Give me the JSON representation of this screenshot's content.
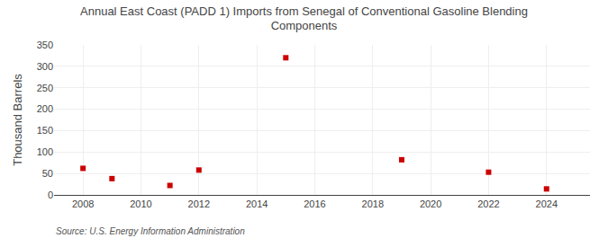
{
  "chart_data": {
    "type": "scatter",
    "title": "Annual East Coast (PADD 1) Imports from Senegal of Conventional Gasoline Blending\nComponents",
    "ylabel": "Thousand Barrels",
    "source": "Source: U.S. Energy Information Administration",
    "x": [
      2008,
      2009,
      2011,
      2012,
      2015,
      2019,
      2022,
      2024
    ],
    "values": [
      62,
      38,
      22,
      58,
      320,
      82,
      53,
      14
    ],
    "color": "#cc0000",
    "marker": "square",
    "xlim": [
      2007.0,
      2025.5
    ],
    "ylim": [
      0,
      350
    ],
    "xticks": [
      2008,
      2010,
      2012,
      2014,
      2016,
      2018,
      2020,
      2022,
      2024
    ],
    "yticks": [
      0,
      50,
      100,
      150,
      200,
      250,
      300,
      350
    ],
    "grid": true
  }
}
